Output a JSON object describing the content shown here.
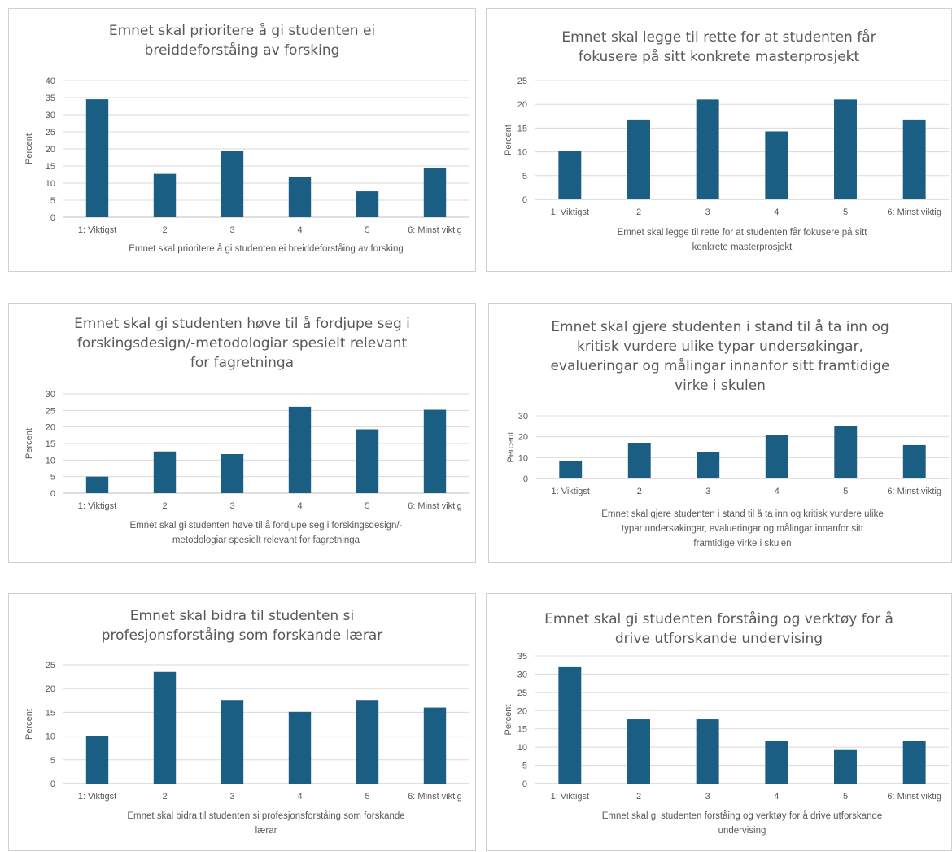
{
  "chart_data": [
    {
      "type": "bar",
      "title": [
        "Emnet skal prioritere å gi studenten ei",
        "breiddeforståing av forsking"
      ],
      "xlabel": [
        "Emnet skal prioritere å gi studenten ei breiddeforståing av forsking"
      ],
      "ylabel": "Percent",
      "categories": [
        "1: Viktigst",
        "2",
        "3",
        "4",
        "5",
        "6: Minst viktig"
      ],
      "values": [
        34.5,
        12.7,
        19.3,
        11.9,
        7.6,
        14.3
      ],
      "ylim": [
        0,
        40
      ],
      "yticks": [
        0,
        5,
        10,
        15,
        20,
        25,
        30,
        35,
        40
      ],
      "grid": true,
      "legend": "none"
    },
    {
      "type": "bar",
      "title": [
        "Emnet skal legge til rette for at studenten får",
        "fokusere på sitt konkrete masterprosjekt"
      ],
      "xlabel": [
        "Emnet skal legge til rette for at studenten får fokusere på sitt",
        "konkrete masterprosjekt"
      ],
      "ylabel": "Percent",
      "categories": [
        "1: Viktigst",
        "2",
        "3",
        "4",
        "5",
        "6: Minst viktig"
      ],
      "values": [
        10.1,
        16.8,
        21.0,
        14.3,
        21.0,
        16.8
      ],
      "ylim": [
        0,
        25
      ],
      "yticks": [
        0,
        5,
        10,
        15,
        20,
        25
      ],
      "grid": true,
      "legend": "none"
    },
    {
      "type": "bar",
      "title": [
        "Emnet skal gi studenten høve til å fordjupe seg i",
        "forskingsdesign/-metodologiar spesielt relevant",
        "for fagretninga"
      ],
      "xlabel": [
        "Emnet skal gi studenten høve til å fordjupe seg i forskingsdesign/-",
        "metodologiar spesielt relevant for fagretninga"
      ],
      "ylabel": "Percent",
      "categories": [
        "1: Viktigst",
        "2",
        "3",
        "4",
        "5",
        "6: Minst viktig"
      ],
      "values": [
        5.0,
        12.6,
        11.8,
        26.1,
        19.3,
        25.2
      ],
      "ylim": [
        0,
        30
      ],
      "yticks": [
        0,
        5,
        10,
        15,
        20,
        25,
        30
      ],
      "grid": true,
      "legend": "none"
    },
    {
      "type": "bar",
      "title": [
        "Emnet skal gjere studenten i stand til å ta inn og",
        "kritisk vurdere ulike typar undersøkingar,",
        "evalueringar og målingar innanfor sitt framtidige",
        "virke i skulen"
      ],
      "xlabel": [
        "Emnet skal gjere studenten i stand til å ta inn og kritisk vurdere ulike",
        "typar undersøkingar, evalueringar og målingar innanfor sitt",
        "framtidige virke i skulen"
      ],
      "ylabel": "Percent",
      "categories": [
        "1: Viktigst",
        "2",
        "3",
        "4",
        "5",
        "6: Minst viktig"
      ],
      "values": [
        8.4,
        16.8,
        12.6,
        21.0,
        25.2,
        16.0
      ],
      "ylim": [
        0,
        30
      ],
      "yticks": [
        0,
        10,
        20,
        30
      ],
      "grid": true,
      "legend": "none"
    },
    {
      "type": "bar",
      "title": [
        "Emnet skal bidra til studenten si",
        "profesjonsforståing som forskande lærar"
      ],
      "xlabel": [
        "Emnet skal bidra til studenten si profesjonsforståing som forskande",
        "lærar"
      ],
      "ylabel": "Percent",
      "categories": [
        "1: Viktigst",
        "2",
        "3",
        "4",
        "5",
        "6: Minst viktig"
      ],
      "values": [
        10.1,
        23.5,
        17.6,
        15.1,
        17.6,
        16.0
      ],
      "ylim": [
        0,
        25
      ],
      "yticks": [
        0,
        5,
        10,
        15,
        20,
        25
      ],
      "grid": true,
      "legend": "none"
    },
    {
      "type": "bar",
      "title": [
        "Emnet skal gi studenten forståing og verktøy for å",
        "drive utforskande undervising"
      ],
      "xlabel": [
        "Emnet skal gi studenten forståing og verktøy for å drive utforskande",
        "undervising"
      ],
      "ylabel": "Percent",
      "categories": [
        "1: Viktigst",
        "2",
        "3",
        "4",
        "5",
        "6: Minst viktig"
      ],
      "values": [
        31.9,
        17.6,
        17.6,
        11.8,
        9.2,
        11.8
      ],
      "ylim": [
        0,
        35
      ],
      "yticks": [
        0,
        5,
        10,
        15,
        20,
        25,
        30,
        35
      ],
      "grid": true,
      "legend": "none"
    }
  ]
}
